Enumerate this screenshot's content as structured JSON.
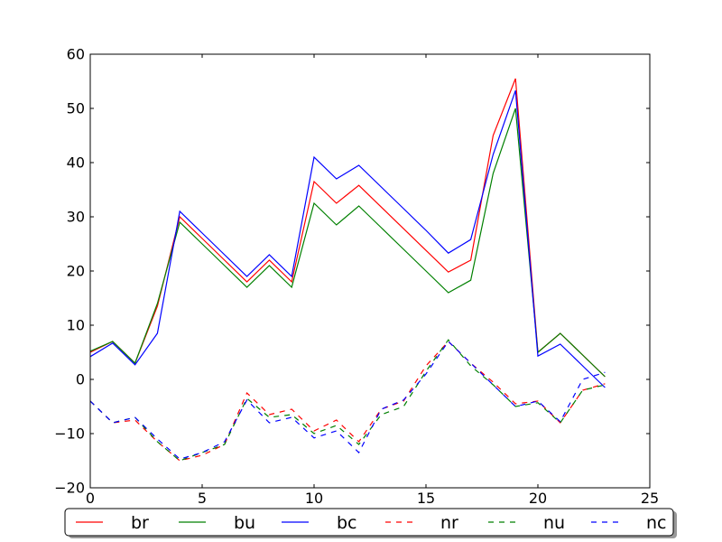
{
  "chart_data": {
    "type": "line",
    "title": "",
    "xlabel": "",
    "ylabel": "",
    "xlim": [
      0,
      25
    ],
    "ylim": [
      -20,
      60
    ],
    "xticks": [
      0,
      5,
      10,
      15,
      20,
      25
    ],
    "yticks": [
      -20,
      -10,
      0,
      10,
      20,
      30,
      40,
      50,
      60
    ],
    "xtick_labels": [
      "0",
      "5",
      "10",
      "15",
      "20",
      "25"
    ],
    "ytick_labels": [
      "−20",
      "−10",
      "0",
      "10",
      "20",
      "30",
      "40",
      "50",
      "60"
    ],
    "grid": false,
    "legend_position": "bottom",
    "x": [
      0,
      1,
      2,
      3,
      4,
      5,
      6,
      7,
      8,
      9,
      10,
      11,
      12,
      13,
      14,
      15,
      16,
      17,
      18,
      19,
      20,
      21,
      22,
      23
    ],
    "series": [
      {
        "name": "br",
        "color": "#ff0000",
        "style": "solid",
        "values": [
          5.0,
          7.0,
          3.0,
          13.5,
          30.0,
          26.0,
          22.0,
          18.0,
          22.0,
          18.0,
          36.5,
          32.5,
          35.8,
          31.8,
          27.8,
          23.8,
          19.8,
          22.0,
          45.0,
          55.5,
          5.0,
          8.5,
          4.5,
          0.5
        ]
      },
      {
        "name": "bu",
        "color": "#008000",
        "style": "solid",
        "values": [
          5.2,
          7.0,
          3.0,
          14.0,
          29.0,
          25.0,
          21.0,
          17.0,
          21.0,
          17.0,
          32.5,
          28.5,
          32.0,
          28.0,
          24.0,
          20.0,
          16.0,
          18.3,
          38.0,
          50.0,
          5.0,
          8.5,
          4.5,
          0.5
        ]
      },
      {
        "name": "bc",
        "color": "#0000ff",
        "style": "solid",
        "values": [
          4.2,
          6.7,
          2.7,
          8.5,
          31.0,
          27.0,
          23.0,
          19.0,
          23.0,
          19.0,
          41.0,
          37.0,
          39.5,
          35.5,
          31.5,
          27.5,
          23.3,
          25.8,
          41.5,
          53.3,
          4.3,
          6.5,
          2.5,
          -1.5
        ]
      },
      {
        "name": "nr",
        "color": "#ff0000",
        "style": "dashed",
        "values": [
          -4.0,
          -8.0,
          -7.5,
          -11.5,
          -15.0,
          -14.0,
          -12.0,
          -2.5,
          -6.5,
          -5.5,
          -9.5,
          -7.5,
          -11.5,
          -5.5,
          -4.0,
          2.5,
          7.0,
          3.0,
          -0.5,
          -4.5,
          -4.0,
          -8.0,
          -2.0,
          -0.8
        ]
      },
      {
        "name": "nu",
        "color": "#008000",
        "style": "dashed",
        "values": [
          -4.0,
          -8.0,
          -7.0,
          -11.5,
          -15.0,
          -13.5,
          -12.0,
          -3.5,
          -7.0,
          -6.5,
          -10.0,
          -8.5,
          -12.0,
          -6.5,
          -5.0,
          1.5,
          7.3,
          2.5,
          -1.0,
          -5.0,
          -4.3,
          -8.0,
          -2.0,
          -1.0
        ]
      },
      {
        "name": "nc",
        "color": "#0000ff",
        "style": "dashed",
        "values": [
          -4.0,
          -8.0,
          -7.0,
          -11.0,
          -14.7,
          -13.5,
          -11.5,
          -3.8,
          -8.0,
          -7.0,
          -10.8,
          -9.5,
          -13.5,
          -5.5,
          -3.8,
          1.0,
          7.0,
          3.0,
          -1.0,
          -5.0,
          -4.0,
          -7.8,
          0.0,
          1.3
        ]
      }
    ]
  }
}
